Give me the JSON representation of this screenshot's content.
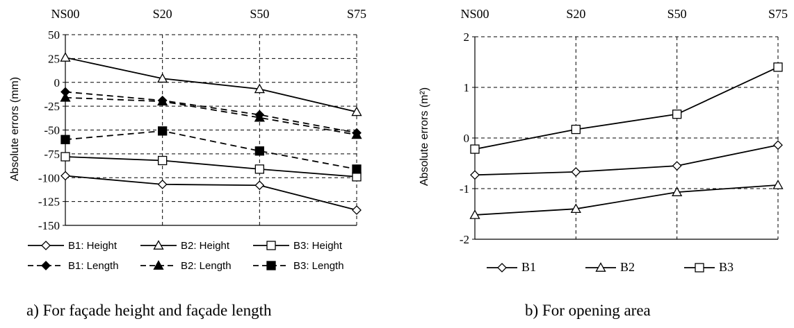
{
  "chart_data": [
    {
      "type": "line",
      "caption": "a) For façade height and façade length",
      "categories": [
        "NS00",
        "S20",
        "S50",
        "S75"
      ],
      "ylabel": "Absolute errors (mm)",
      "ylim": [
        -150,
        50
      ],
      "yticks": [
        50,
        25,
        0,
        -25,
        -50,
        -75,
        -100,
        -125,
        -150
      ],
      "grid": true,
      "legend_position": "bottom",
      "series": [
        {
          "name": "B1: Height",
          "values": [
            -98,
            -107,
            -108,
            -134
          ],
          "marker": "diamond-open",
          "dash": false
        },
        {
          "name": "B2: Height",
          "values": [
            26,
            4,
            -7,
            -31
          ],
          "marker": "triangle-open",
          "dash": false
        },
        {
          "name": "B3: Height",
          "values": [
            -78,
            -82,
            -91,
            -99
          ],
          "marker": "square-open",
          "dash": false
        },
        {
          "name": "B1: Length",
          "values": [
            -10,
            -19,
            -34,
            -53
          ],
          "marker": "diamond-filled",
          "dash": true
        },
        {
          "name": "B2: Length",
          "values": [
            -16,
            -20,
            -37,
            -55
          ],
          "marker": "triangle-filled",
          "dash": true
        },
        {
          "name": "B3: Length",
          "values": [
            -60,
            -51,
            -72,
            -91
          ],
          "marker": "square-filled",
          "dash": true
        }
      ]
    },
    {
      "type": "line",
      "caption": "b) For opening area",
      "categories": [
        "NS00",
        "S20",
        "S50",
        "S75"
      ],
      "ylabel": "Absolute errors (m²)",
      "ylim": [
        -2,
        2
      ],
      "yticks": [
        2,
        1,
        0,
        -1,
        -2
      ],
      "grid": true,
      "legend_position": "bottom",
      "series": [
        {
          "name": "B1",
          "values": [
            -0.73,
            -0.67,
            -0.55,
            -0.14
          ],
          "marker": "diamond-open",
          "dash": false
        },
        {
          "name": "B2",
          "values": [
            -1.52,
            -1.4,
            -1.07,
            -0.93
          ],
          "marker": "triangle-open",
          "dash": false
        },
        {
          "name": "B3",
          "values": [
            -0.22,
            0.17,
            0.47,
            1.4
          ],
          "marker": "square-open",
          "dash": false
        }
      ]
    }
  ]
}
